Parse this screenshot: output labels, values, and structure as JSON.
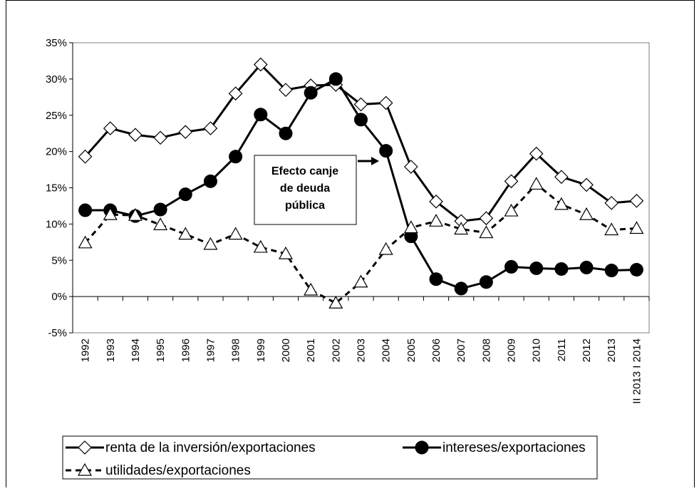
{
  "chart_data": {
    "type": "line",
    "categories": [
      "1992",
      "1993",
      "1994",
      "1995",
      "1996",
      "1997",
      "1998",
      "1999",
      "2000",
      "2001",
      "2002",
      "2003",
      "2004",
      "2005",
      "2006",
      "2007",
      "2008",
      "2009",
      "2010",
      "2011",
      "2012",
      "2013",
      "II 2013 I 2014"
    ],
    "series": [
      {
        "name": "renta de la inversión/exportaciones",
        "color": "#000000",
        "marker": "diamond",
        "dash": false,
        "values": [
          19.3,
          23.2,
          22.3,
          21.9,
          22.7,
          23.2,
          28.0,
          32.0,
          28.5,
          29.1,
          29.2,
          26.5,
          26.7,
          17.9,
          13.1,
          10.4,
          10.8,
          15.9,
          19.7,
          16.5,
          15.4,
          12.9,
          13.2
        ]
      },
      {
        "name": "intereses/exportaciones",
        "color": "#000000",
        "marker": "circle",
        "dash": false,
        "values": [
          11.9,
          11.9,
          11.1,
          12.0,
          14.1,
          15.9,
          19.3,
          25.1,
          22.5,
          28.1,
          30.0,
          24.4,
          20.1,
          8.3,
          2.4,
          1.1,
          2.0,
          4.1,
          3.9,
          3.8,
          4.0,
          3.6,
          3.7
        ]
      },
      {
        "name": "utilidades/exportaciones",
        "color": "#000000",
        "marker": "triangle",
        "dash": true,
        "values": [
          7.4,
          11.3,
          11.2,
          9.9,
          8.6,
          7.2,
          8.6,
          6.8,
          5.9,
          0.9,
          -0.9,
          2.0,
          6.5,
          9.5,
          10.4,
          9.3,
          8.8,
          11.8,
          15.5,
          12.7,
          11.3,
          9.2,
          9.4
        ]
      }
    ],
    "ylim": [
      -5,
      35
    ],
    "yticks": [
      {
        "value": -5,
        "label": "-5%"
      },
      {
        "value": 0,
        "label": "0%"
      },
      {
        "value": 5,
        "label": "5%"
      },
      {
        "value": 10,
        "label": "10%"
      },
      {
        "value": 15,
        "label": "15%"
      },
      {
        "value": 20,
        "label": "20%"
      },
      {
        "value": 25,
        "label": "25%"
      },
      {
        "value": 30,
        "label": "30%"
      },
      {
        "value": 35,
        "label": "35%"
      }
    ],
    "grid": false,
    "annotation": [
      "Efecto canje",
      "de deuda",
      "pública"
    ]
  }
}
